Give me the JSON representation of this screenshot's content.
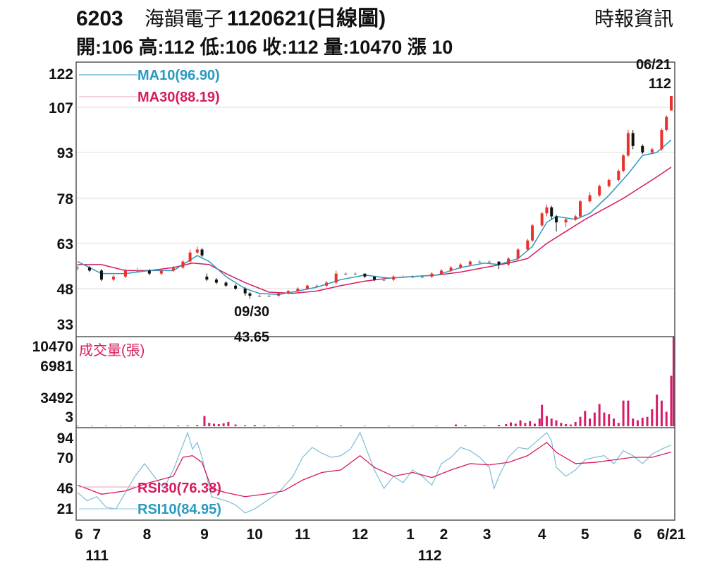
{
  "header": {
    "code": "6203",
    "name": "海韻電子",
    "date_title": "1120621(日線圖)",
    "source": "時報資訊",
    "stats": "開:106 高:112 低:106 收:112 量:10470 漲 10"
  },
  "colors": {
    "up": "#e8322a",
    "down": "#111111",
    "ma10": "#2a9ac0",
    "ma30": "#d81b5e",
    "volume": "#d81b6a",
    "grid": "#dddddd"
  },
  "chart_data": {
    "type": "candlestick",
    "price_axis": {
      "ticks": [
        122,
        107,
        93,
        78,
        63,
        48,
        33
      ]
    },
    "volume_axis": {
      "ticks": [
        10470,
        6981,
        3492,
        3
      ],
      "title": "成交量(張)"
    },
    "rsi_axis": {
      "ticks": [
        94,
        70,
        46,
        21
      ]
    },
    "x_ticks": [
      {
        "idx": 0,
        "label": "6"
      },
      {
        "idx": 8,
        "label": "7"
      },
      {
        "idx": 29,
        "label": "8"
      },
      {
        "idx": 53,
        "label": "9"
      },
      {
        "idx": 74,
        "label": "10"
      },
      {
        "idx": 94,
        "label": "11"
      },
      {
        "idx": 118,
        "label": "12"
      },
      {
        "idx": 139,
        "label": "1"
      },
      {
        "idx": 153,
        "label": "2"
      },
      {
        "idx": 171,
        "label": "3"
      },
      {
        "idx": 194,
        "label": "4"
      },
      {
        "idx": 212,
        "label": "5"
      },
      {
        "idx": 234,
        "label": "6"
      },
      {
        "idx": 248,
        "label": "6/21"
      }
    ],
    "year_labels": [
      {
        "idx": 4,
        "label": "111"
      },
      {
        "idx": 143,
        "label": "112"
      }
    ],
    "x_range": [
      0,
      248
    ],
    "annotations": [
      {
        "idx": 72,
        "date": "09/30",
        "value": "43.65"
      },
      {
        "idx": 248,
        "date": "06/21",
        "value": "112"
      }
    ],
    "candles": [
      [
        0,
        55,
        56,
        54,
        55
      ],
      [
        5,
        55,
        55.5,
        53.5,
        54
      ],
      [
        10,
        54,
        54.5,
        50.5,
        51
      ],
      [
        15,
        51,
        52.5,
        50.5,
        52
      ],
      [
        20,
        52,
        54.5,
        51.5,
        54
      ],
      [
        25,
        54,
        55,
        53.5,
        54
      ],
      [
        30,
        54,
        54.5,
        52.5,
        53
      ],
      [
        35,
        53,
        54.5,
        52.5,
        54
      ],
      [
        40,
        54,
        55.5,
        53.5,
        55
      ],
      [
        44,
        55,
        57.5,
        54.5,
        57
      ],
      [
        47,
        57,
        61,
        56.5,
        60
      ],
      [
        50,
        60,
        62,
        59.5,
        61
      ],
      [
        52,
        61,
        61.5,
        58.5,
        59
      ],
      [
        54,
        52,
        53,
        50.5,
        51
      ],
      [
        58,
        51,
        51.5,
        49.5,
        50
      ],
      [
        62,
        50,
        50.5,
        48.5,
        49
      ],
      [
        66,
        49,
        49.5,
        47.5,
        48
      ],
      [
        70,
        48,
        48.5,
        45,
        46
      ],
      [
        72,
        46,
        46.5,
        43.65,
        45
      ],
      [
        76,
        45,
        46,
        44.5,
        45
      ],
      [
        80,
        45,
        45.5,
        44.5,
        45
      ],
      [
        84,
        45,
        46.5,
        44.5,
        46
      ],
      [
        88,
        46,
        47.5,
        45.5,
        47
      ],
      [
        92,
        47,
        48.5,
        46.5,
        48
      ],
      [
        96,
        48,
        49.5,
        47.5,
        49
      ],
      [
        100,
        49,
        49.5,
        48.5,
        49
      ],
      [
        104,
        49,
        50.5,
        48.5,
        50
      ],
      [
        108,
        50,
        54,
        49.5,
        53
      ],
      [
        112,
        53,
        53.5,
        52.5,
        53
      ],
      [
        116,
        53,
        53.5,
        52.5,
        53
      ],
      [
        120,
        53,
        53,
        51.5,
        52
      ],
      [
        124,
        52,
        52,
        50.5,
        51
      ],
      [
        128,
        51,
        51.5,
        50.5,
        51
      ],
      [
        132,
        51,
        52.5,
        50.5,
        52
      ],
      [
        136,
        52,
        52.5,
        51.5,
        52
      ],
      [
        140,
        52,
        52.5,
        51.5,
        52
      ],
      [
        144,
        52,
        52.5,
        51.5,
        52
      ],
      [
        148,
        52,
        53.5,
        51.5,
        53
      ],
      [
        152,
        53,
        54.5,
        52.5,
        54
      ],
      [
        156,
        54,
        55.5,
        53.5,
        55
      ],
      [
        160,
        55,
        56.5,
        54.5,
        56
      ],
      [
        164,
        56,
        57.5,
        55.5,
        57
      ],
      [
        168,
        57,
        57.5,
        56.5,
        57
      ],
      [
        172,
        57,
        57.5,
        56.5,
        57
      ],
      [
        176,
        57,
        57,
        54.5,
        56
      ],
      [
        180,
        56,
        58.5,
        55.5,
        58
      ],
      [
        184,
        58,
        61.5,
        57.5,
        61
      ],
      [
        188,
        61,
        64.5,
        60.5,
        64
      ],
      [
        190,
        64,
        69.5,
        63.5,
        69
      ],
      [
        194,
        69,
        73.5,
        68.5,
        73
      ],
      [
        196,
        73,
        76,
        72,
        75
      ],
      [
        198,
        75,
        75.5,
        71,
        72
      ],
      [
        200,
        72,
        72.5,
        67,
        70
      ],
      [
        204,
        70,
        71.5,
        68.5,
        71
      ],
      [
        208,
        71,
        72.5,
        70.5,
        72
      ],
      [
        210,
        72,
        77.5,
        71.5,
        77
      ],
      [
        214,
        77,
        80,
        76.5,
        79
      ],
      [
        218,
        79,
        82.5,
        78.5,
        82
      ],
      [
        222,
        82,
        84.5,
        81.5,
        84
      ],
      [
        226,
        84,
        87.5,
        83.5,
        87
      ],
      [
        228,
        87,
        92.5,
        86.5,
        92
      ],
      [
        230,
        92,
        100,
        91.5,
        99
      ],
      [
        232,
        99,
        100,
        94,
        95
      ],
      [
        236,
        95,
        95.5,
        92.5,
        93
      ],
      [
        240,
        93,
        94.5,
        92.5,
        94
      ],
      [
        244,
        94,
        100.5,
        93.5,
        100
      ],
      [
        246,
        100,
        104.5,
        99.5,
        104
      ],
      [
        248,
        106,
        112,
        106,
        112
      ]
    ],
    "ma10": {
      "label": "MA10(96.90)",
      "points": [
        [
          0,
          57
        ],
        [
          10,
          53
        ],
        [
          20,
          53
        ],
        [
          30,
          54
        ],
        [
          40,
          54
        ],
        [
          50,
          59
        ],
        [
          55,
          57
        ],
        [
          62,
          52
        ],
        [
          70,
          48
        ],
        [
          76,
          46
        ],
        [
          84,
          45.5
        ],
        [
          92,
          47
        ],
        [
          100,
          48.5
        ],
        [
          110,
          51
        ],
        [
          120,
          52.5
        ],
        [
          130,
          51.5
        ],
        [
          140,
          52
        ],
        [
          150,
          52.5
        ],
        [
          160,
          55
        ],
        [
          170,
          56.5
        ],
        [
          176,
          56
        ],
        [
          184,
          58
        ],
        [
          190,
          62
        ],
        [
          196,
          70
        ],
        [
          200,
          72
        ],
        [
          208,
          71
        ],
        [
          214,
          73
        ],
        [
          222,
          79
        ],
        [
          230,
          86
        ],
        [
          236,
          92
        ],
        [
          242,
          93
        ],
        [
          248,
          96.9
        ]
      ]
    },
    "ma30": {
      "label": "MA30(88.19)",
      "points": [
        [
          0,
          56
        ],
        [
          10,
          56
        ],
        [
          20,
          54
        ],
        [
          30,
          54
        ],
        [
          40,
          55
        ],
        [
          48,
          56.5
        ],
        [
          55,
          56
        ],
        [
          62,
          53
        ],
        [
          70,
          50
        ],
        [
          80,
          46.5
        ],
        [
          90,
          46
        ],
        [
          100,
          47
        ],
        [
          110,
          49
        ],
        [
          120,
          50.5
        ],
        [
          130,
          51.5
        ],
        [
          140,
          52
        ],
        [
          150,
          52.5
        ],
        [
          160,
          53.5
        ],
        [
          170,
          55
        ],
        [
          180,
          56.5
        ],
        [
          188,
          58
        ],
        [
          196,
          63
        ],
        [
          204,
          67
        ],
        [
          212,
          71
        ],
        [
          220,
          74.5
        ],
        [
          228,
          78
        ],
        [
          236,
          82
        ],
        [
          242,
          85
        ],
        [
          248,
          88.19
        ]
      ]
    },
    "volume": [
      [
        0,
        60
      ],
      [
        6,
        40
      ],
      [
        12,
        50
      ],
      [
        18,
        40
      ],
      [
        24,
        60
      ],
      [
        30,
        40
      ],
      [
        36,
        50
      ],
      [
        42,
        80
      ],
      [
        46,
        100
      ],
      [
        50,
        150
      ],
      [
        53,
        1200
      ],
      [
        55,
        400
      ],
      [
        57,
        300
      ],
      [
        59,
        250
      ],
      [
        61,
        350
      ],
      [
        63,
        500
      ],
      [
        66,
        200
      ],
      [
        70,
        120
      ],
      [
        74,
        150
      ],
      [
        78,
        100
      ],
      [
        84,
        60
      ],
      [
        90,
        80
      ],
      [
        100,
        60
      ],
      [
        110,
        80
      ],
      [
        120,
        50
      ],
      [
        130,
        60
      ],
      [
        140,
        50
      ],
      [
        150,
        60
      ],
      [
        158,
        200
      ],
      [
        162,
        120
      ],
      [
        170,
        80
      ],
      [
        176,
        160
      ],
      [
        179,
        250
      ],
      [
        181,
        450
      ],
      [
        183,
        300
      ],
      [
        185,
        700
      ],
      [
        187,
        400
      ],
      [
        189,
        600
      ],
      [
        191,
        300
      ],
      [
        193,
        900
      ],
      [
        194,
        2500
      ],
      [
        196,
        1200
      ],
      [
        198,
        900
      ],
      [
        200,
        700
      ],
      [
        202,
        400
      ],
      [
        204,
        250
      ],
      [
        206,
        200
      ],
      [
        208,
        500
      ],
      [
        210,
        1100
      ],
      [
        212,
        1800
      ],
      [
        214,
        900
      ],
      [
        216,
        1600
      ],
      [
        218,
        2600
      ],
      [
        220,
        1600
      ],
      [
        222,
        1400
      ],
      [
        224,
        900
      ],
      [
        226,
        400
      ],
      [
        228,
        3000
      ],
      [
        230,
        3000
      ],
      [
        232,
        900
      ],
      [
        234,
        700
      ],
      [
        236,
        1000
      ],
      [
        238,
        1100
      ],
      [
        240,
        2000
      ],
      [
        242,
        3700
      ],
      [
        244,
        3000
      ],
      [
        246,
        1700
      ],
      [
        248,
        5900
      ],
      [
        249,
        10470
      ]
    ],
    "rsi10": {
      "label": "RSI10(84.95)",
      "points": [
        [
          0,
          40
        ],
        [
          4,
          30
        ],
        [
          8,
          35
        ],
        [
          12,
          22
        ],
        [
          16,
          20
        ],
        [
          20,
          40
        ],
        [
          24,
          55
        ],
        [
          28,
          65
        ],
        [
          32,
          55
        ],
        [
          36,
          45
        ],
        [
          40,
          60
        ],
        [
          44,
          85
        ],
        [
          46,
          100
        ],
        [
          48,
          80
        ],
        [
          50,
          88
        ],
        [
          52,
          70
        ],
        [
          56,
          35
        ],
        [
          62,
          30
        ],
        [
          66,
          25
        ],
        [
          70,
          15
        ],
        [
          74,
          20
        ],
        [
          78,
          28
        ],
        [
          84,
          40
        ],
        [
          90,
          55
        ],
        [
          94,
          70
        ],
        [
          98,
          82
        ],
        [
          102,
          75
        ],
        [
          106,
          70
        ],
        [
          110,
          72
        ],
        [
          114,
          80
        ],
        [
          118,
          100
        ],
        [
          120,
          85
        ],
        [
          124,
          60
        ],
        [
          128,
          45
        ],
        [
          132,
          55
        ],
        [
          136,
          50
        ],
        [
          140,
          60
        ],
        [
          144,
          55
        ],
        [
          148,
          48
        ],
        [
          152,
          65
        ],
        [
          156,
          70
        ],
        [
          160,
          82
        ],
        [
          164,
          78
        ],
        [
          168,
          70
        ],
        [
          172,
          62
        ],
        [
          174,
          45
        ],
        [
          176,
          55
        ],
        [
          180,
          70
        ],
        [
          184,
          82
        ],
        [
          188,
          80
        ],
        [
          192,
          90
        ],
        [
          196,
          100
        ],
        [
          198,
          90
        ],
        [
          200,
          62
        ],
        [
          204,
          55
        ],
        [
          208,
          60
        ],
        [
          212,
          68
        ],
        [
          216,
          70
        ],
        [
          220,
          72
        ],
        [
          224,
          65
        ],
        [
          228,
          78
        ],
        [
          232,
          72
        ],
        [
          236,
          65
        ],
        [
          240,
          74
        ],
        [
          244,
          80
        ],
        [
          248,
          84.95
        ]
      ]
    },
    "rsi30": {
      "label": "RSI30(76.38)",
      "points": [
        [
          0,
          48
        ],
        [
          10,
          38
        ],
        [
          20,
          42
        ],
        [
          30,
          50
        ],
        [
          40,
          55
        ],
        [
          44,
          70
        ],
        [
          48,
          72
        ],
        [
          52,
          66
        ],
        [
          56,
          45
        ],
        [
          62,
          40
        ],
        [
          70,
          35
        ],
        [
          78,
          38
        ],
        [
          86,
          42
        ],
        [
          94,
          52
        ],
        [
          102,
          58
        ],
        [
          110,
          60
        ],
        [
          118,
          72
        ],
        [
          124,
          62
        ],
        [
          132,
          55
        ],
        [
          140,
          58
        ],
        [
          148,
          54
        ],
        [
          156,
          60
        ],
        [
          164,
          65
        ],
        [
          172,
          64
        ],
        [
          180,
          66
        ],
        [
          188,
          72
        ],
        [
          196,
          88
        ],
        [
          200,
          76
        ],
        [
          208,
          65
        ],
        [
          216,
          66
        ],
        [
          224,
          68
        ],
        [
          232,
          70
        ],
        [
          240,
          70
        ],
        [
          248,
          76.38
        ]
      ]
    }
  }
}
